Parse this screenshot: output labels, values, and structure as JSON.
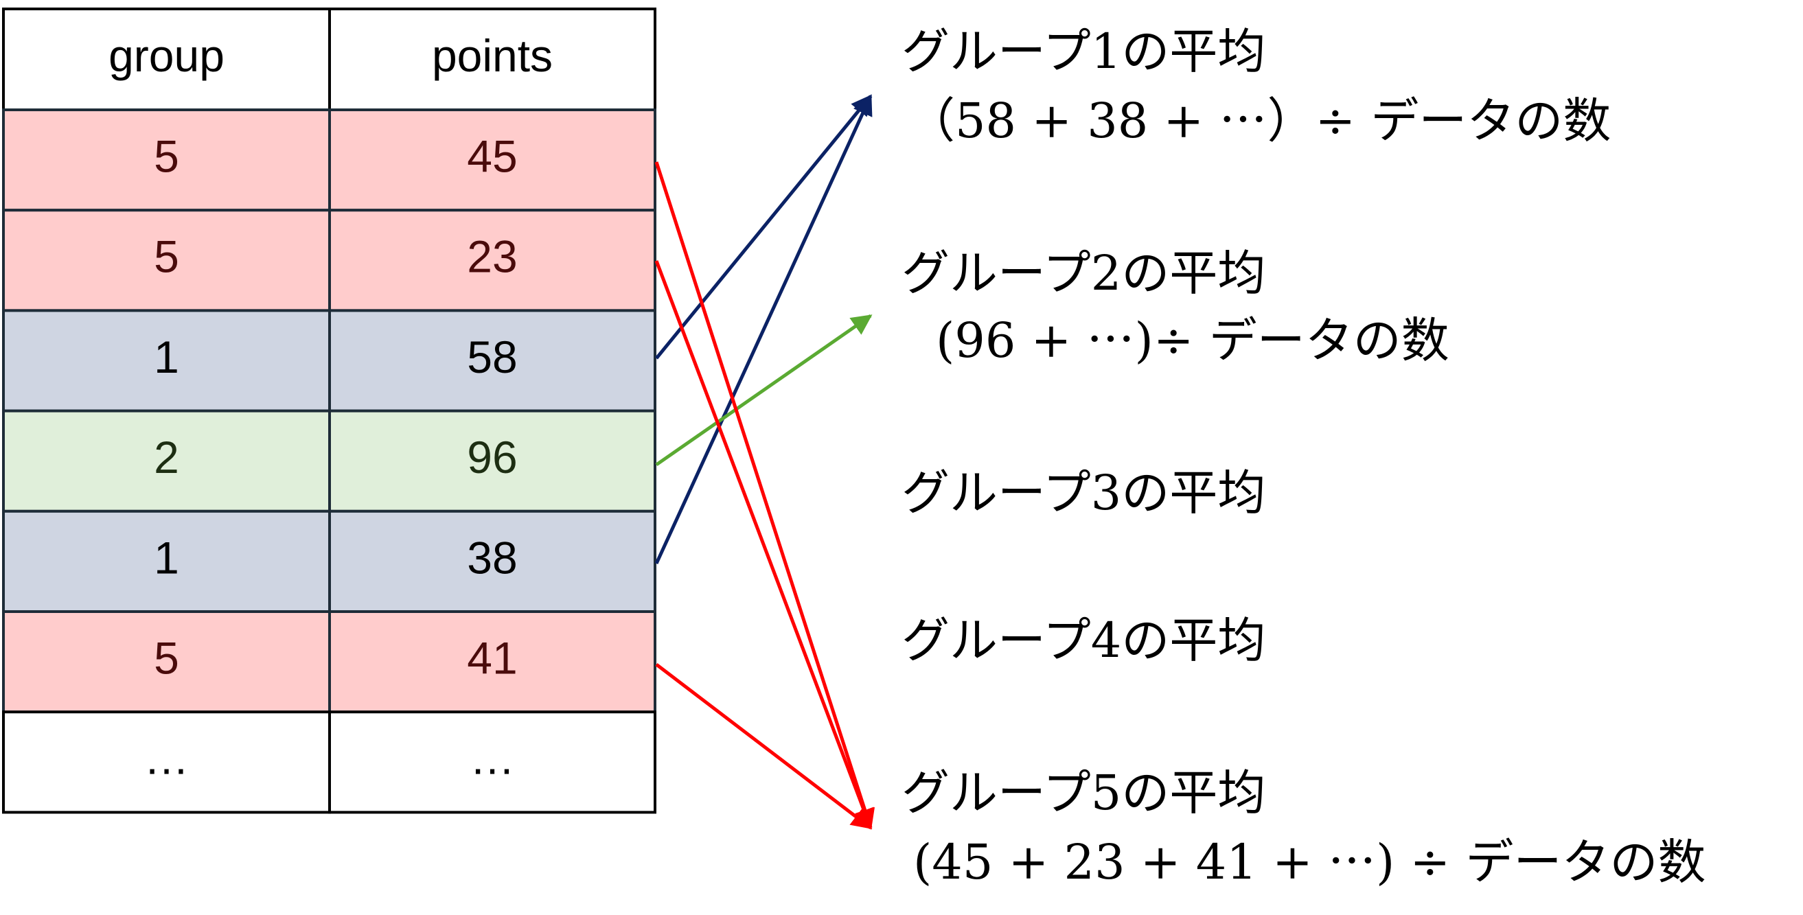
{
  "table": {
    "header": [
      "group",
      "points"
    ],
    "rows": [
      [
        5,
        45
      ],
      [
        5,
        23
      ],
      [
        1,
        58
      ],
      [
        2,
        96
      ],
      [
        1,
        38
      ],
      [
        5,
        41
      ],
      [
        "…",
        "…"
      ]
    ]
  },
  "groups": [
    {
      "title": "グループ1の平均",
      "formula": "（58 + 38 + ⋯）÷ データの数"
    },
    {
      "title": "グループ2の平均",
      "formula": "(96 + ⋯)÷  データの数"
    },
    {
      "title": "グループ3の平均"
    },
    {
      "title": "グループ4の平均"
    },
    {
      "title": "グループ5の平均",
      "formula": "(45 + 23 + 41 + ⋯) ÷ データの数"
    }
  ]
}
